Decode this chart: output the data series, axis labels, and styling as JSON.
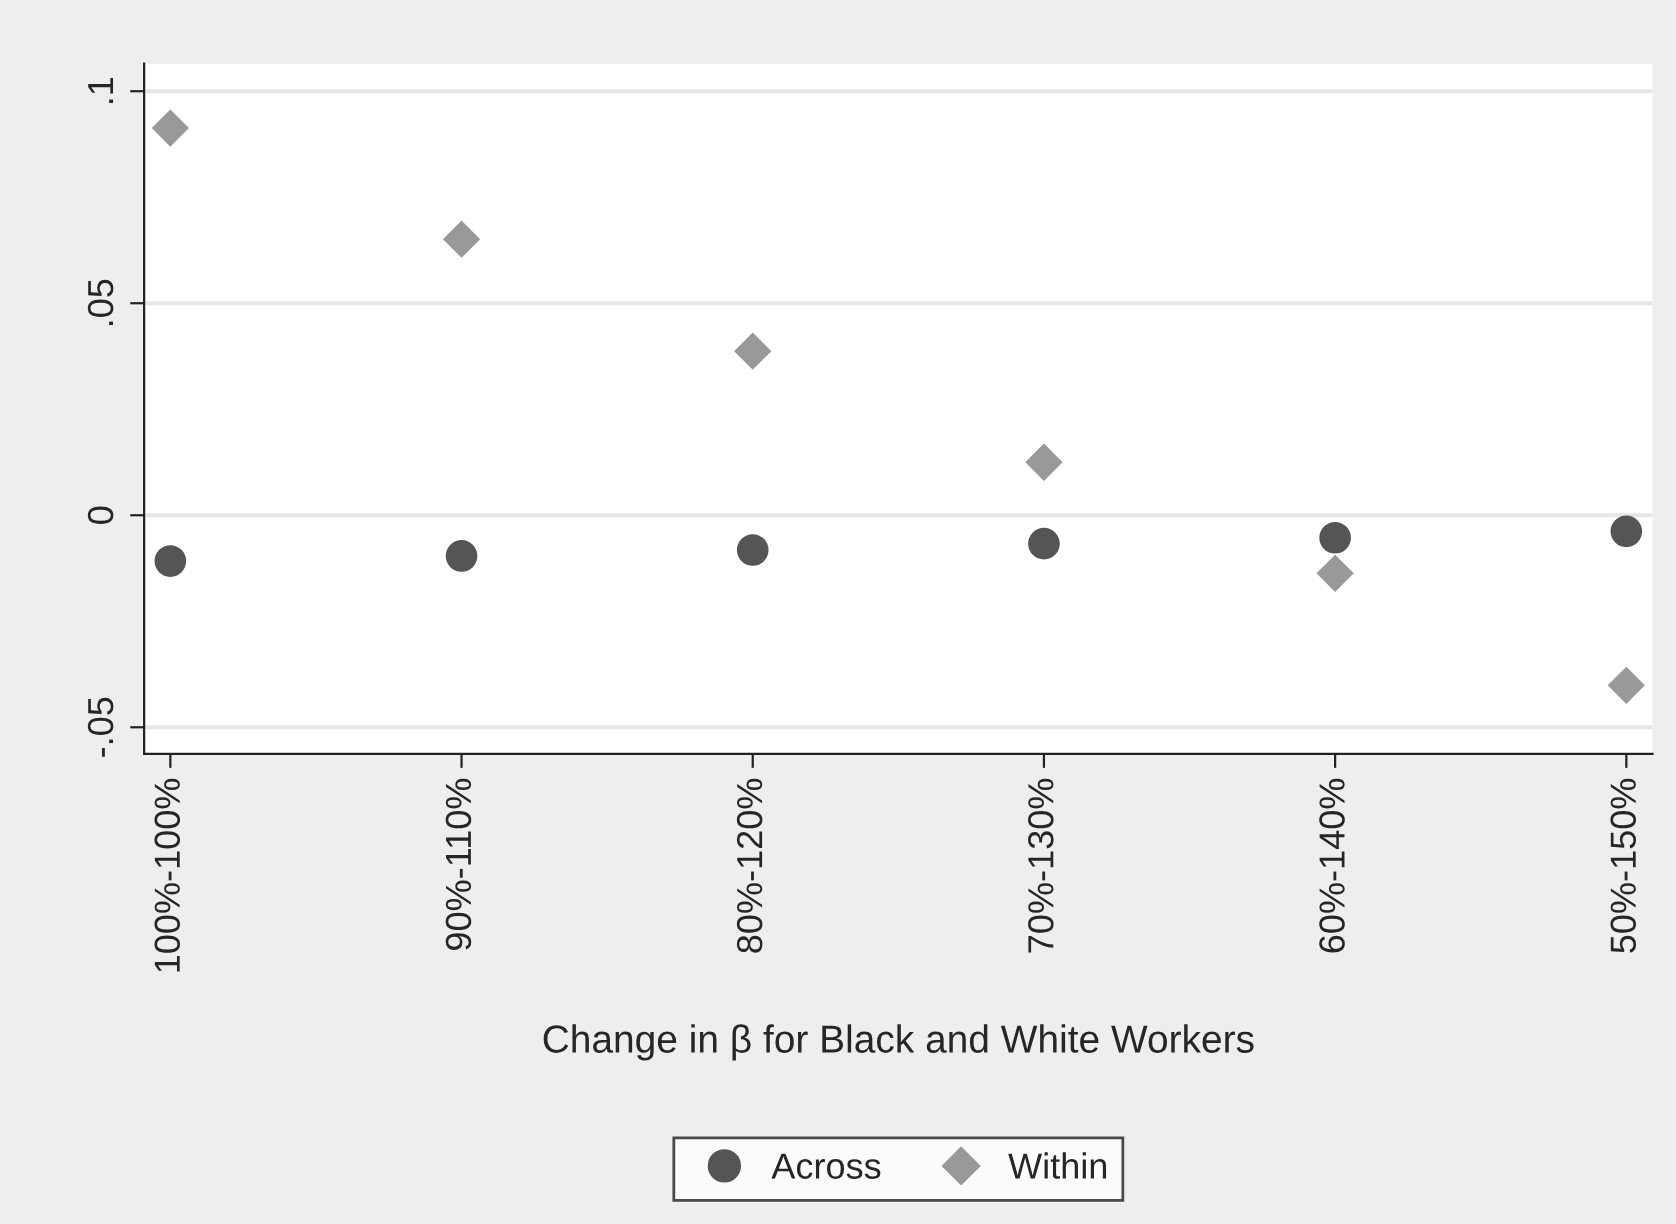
{
  "chart_data": {
    "type": "scatter",
    "xlabel": "Change in β for Black and White Workers",
    "categories": [
      "100%-100%",
      "90%-110%",
      "80%-120%",
      "70%-130%",
      "60%-140%",
      "50%-150%"
    ],
    "series": [
      {
        "name": "Across",
        "color": "#555555",
        "marker": "circle",
        "values": [
          -0.0108,
          -0.0096,
          -0.0082,
          -0.0067,
          -0.0053,
          -0.0038
        ]
      },
      {
        "name": "Within",
        "color": "#999999",
        "marker": "diamond",
        "values": [
          0.0913,
          0.0651,
          0.0387,
          0.0125,
          -0.0137,
          -0.0401
        ]
      }
    ],
    "ylim": [
      -0.0563,
      0.1065
    ],
    "yticks": [
      {
        "value": -0.05,
        "label": "-.05"
      },
      {
        "value": 0,
        "label": "0"
      },
      {
        "value": 0.05,
        "label": ".05"
      },
      {
        "value": 0.1,
        "label": ".1"
      }
    ],
    "grid": "y",
    "legend": "bottom"
  }
}
